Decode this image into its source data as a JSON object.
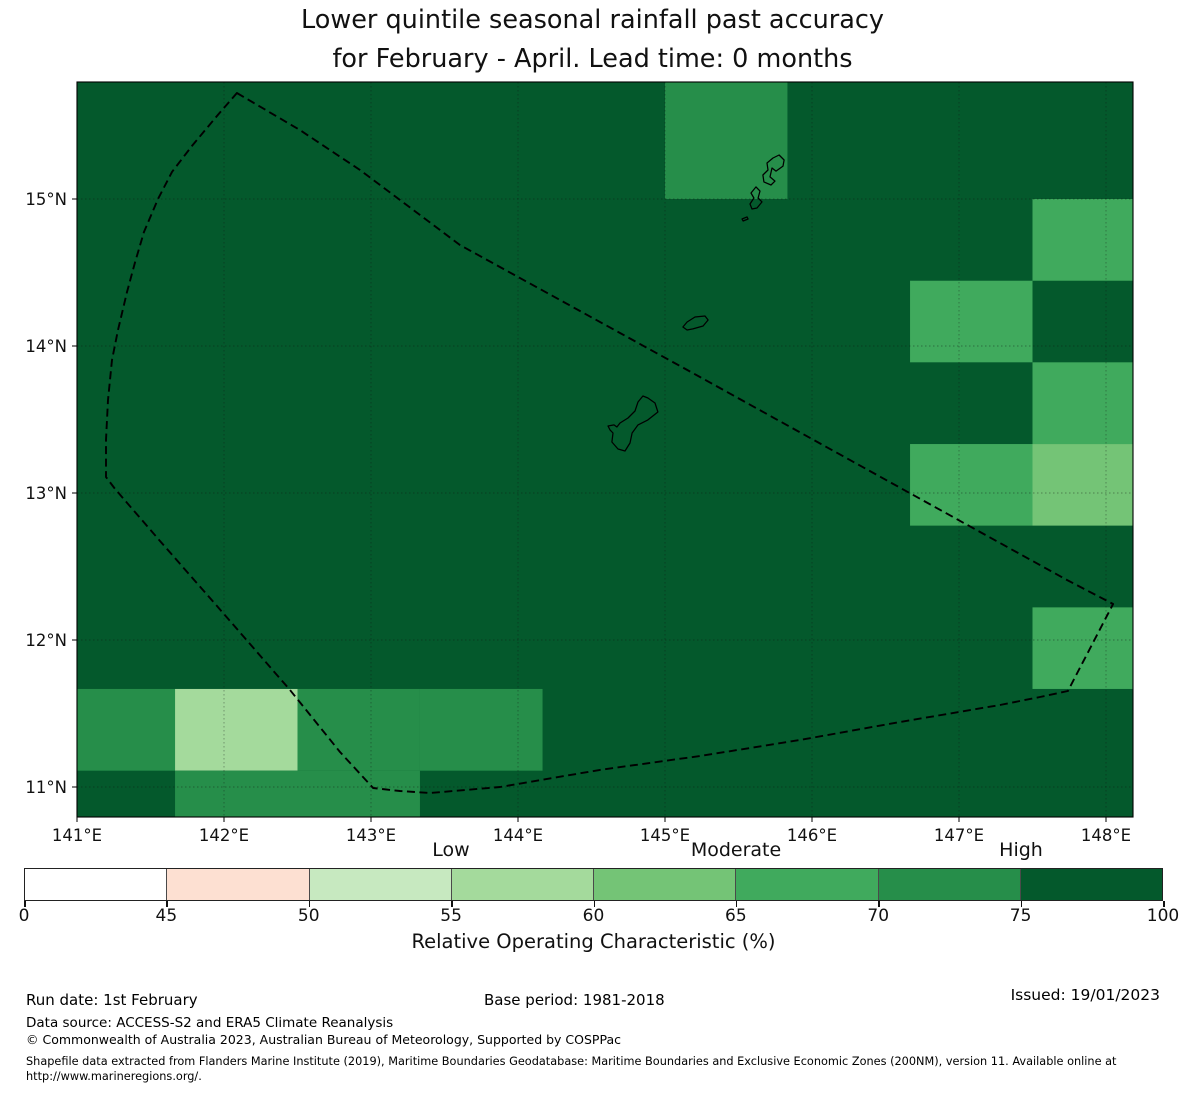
{
  "title": {
    "line1": "Lower quintile seasonal rainfall past accuracy",
    "line2": "for February - April. Lead time: 0 months"
  },
  "chart_data": {
    "type": "heatmap",
    "title": "Lower quintile seasonal rainfall past accuracy for February - April. Lead time: 0 months",
    "map": {
      "x_ticks": [
        {
          "label": "141°E",
          "lon": 141
        },
        {
          "label": "142°E",
          "lon": 142
        },
        {
          "label": "143°E",
          "lon": 143
        },
        {
          "label": "144°E",
          "lon": 144
        },
        {
          "label": "145°E",
          "lon": 145
        },
        {
          "label": "146°E",
          "lon": 146
        },
        {
          "label": "147°E",
          "lon": 147
        },
        {
          "label": "148°E",
          "lon": 148
        }
      ],
      "y_ticks": [
        {
          "label": "15°N",
          "lat": 15
        },
        {
          "label": "14°N",
          "lat": 14
        },
        {
          "label": "13°N",
          "lat": 13
        },
        {
          "label": "12°N",
          "lat": 12
        },
        {
          "label": "11°N",
          "lat": 11
        }
      ],
      "lon_range": [
        141.0,
        148.184
      ],
      "lat_range": [
        10.796,
        15.796
      ],
      "grid_cell_deg": {
        "lon": 0.8333,
        "lat": 0.5556
      },
      "background_roc_range": "75-100",
      "cells": [
        {
          "lon0": 145.0,
          "lon1": 145.833,
          "lat0": 15.0,
          "lat1": 15.8,
          "roc_range": "70-75"
        },
        {
          "lon0": 147.5,
          "lon1": 148.34,
          "lat0": 14.444,
          "lat1": 15.0,
          "roc_range": "65-70"
        },
        {
          "lon0": 146.667,
          "lon1": 147.5,
          "lat0": 13.889,
          "lat1": 14.444,
          "roc_range": "65-70"
        },
        {
          "lon0": 147.5,
          "lon1": 148.34,
          "lat0": 13.333,
          "lat1": 13.889,
          "roc_range": "65-70"
        },
        {
          "lon0": 146.667,
          "lon1": 147.5,
          "lat0": 12.778,
          "lat1": 13.333,
          "roc_range": "65-70"
        },
        {
          "lon0": 147.5,
          "lon1": 148.34,
          "lat0": 12.778,
          "lat1": 13.333,
          "roc_range": "60-65"
        },
        {
          "lon0": 147.5,
          "lon1": 148.34,
          "lat0": 11.667,
          "lat1": 12.222,
          "roc_range": "65-70"
        },
        {
          "lon0": 141.0,
          "lon1": 141.667,
          "lat0": 11.111,
          "lat1": 11.667,
          "roc_range": "70-75"
        },
        {
          "lon0": 141.667,
          "lon1": 142.5,
          "lat0": 11.111,
          "lat1": 11.667,
          "roc_range": "55-60"
        },
        {
          "lon0": 142.5,
          "lon1": 143.333,
          "lat0": 11.111,
          "lat1": 11.667,
          "roc_range": "70-75"
        },
        {
          "lon0": 143.333,
          "lon1": 144.167,
          "lat0": 11.111,
          "lat1": 11.667,
          "roc_range": "70-75"
        },
        {
          "lon0": 141.667,
          "lon1": 142.5,
          "lat0": 10.55,
          "lat1": 11.111,
          "roc_range": "70-75"
        },
        {
          "lon0": 142.5,
          "lon1": 143.333,
          "lat0": 10.55,
          "lat1": 11.111,
          "roc_range": "70-75"
        }
      ],
      "eez_boundary": [
        [
          142.088,
          15.721
        ],
        [
          142.517,
          15.469
        ],
        [
          142.925,
          15.197
        ],
        [
          143.333,
          14.891
        ],
        [
          143.605,
          14.687
        ],
        [
          144.286,
          14.313
        ],
        [
          145.238,
          13.789
        ],
        [
          146.259,
          13.224
        ],
        [
          147.279,
          12.66
        ],
        [
          147.735,
          12.408
        ],
        [
          148.048,
          12.245
        ],
        [
          147.741,
          11.653
        ],
        [
          147.551,
          11.612
        ],
        [
          147.279,
          11.558
        ],
        [
          146.599,
          11.442
        ],
        [
          145.918,
          11.32
        ],
        [
          145.238,
          11.211
        ],
        [
          144.558,
          11.116
        ],
        [
          143.878,
          11.0
        ],
        [
          143.401,
          10.959
        ],
        [
          143.197,
          10.973
        ],
        [
          143.014,
          10.993
        ],
        [
          142.789,
          11.238
        ],
        [
          142.449,
          11.66
        ],
        [
          141.993,
          12.184
        ],
        [
          141.565,
          12.673
        ],
        [
          141.259,
          13.027
        ],
        [
          141.197,
          13.109
        ],
        [
          141.197,
          13.361
        ],
        [
          141.211,
          13.633
        ],
        [
          141.238,
          13.905
        ],
        [
          141.279,
          14.109
        ],
        [
          141.34,
          14.367
        ],
        [
          141.395,
          14.571
        ],
        [
          141.456,
          14.776
        ],
        [
          141.551,
          15.0
        ],
        [
          141.646,
          15.184
        ],
        [
          141.782,
          15.361
        ],
        [
          141.946,
          15.558
        ]
      ],
      "islands": [
        {
          "name": "guam",
          "outline": [
            [
              144.816,
              13.619
            ],
            [
              144.85,
              13.66
            ],
            [
              144.884,
              13.646
            ],
            [
              144.932,
              13.612
            ],
            [
              144.952,
              13.551
            ],
            [
              144.884,
              13.497
            ],
            [
              144.816,
              13.463
            ],
            [
              144.776,
              13.408
            ],
            [
              144.762,
              13.34
            ],
            [
              144.728,
              13.286
            ],
            [
              144.68,
              13.299
            ],
            [
              144.639,
              13.347
            ],
            [
              144.646,
              13.408
            ],
            [
              144.626,
              13.429
            ],
            [
              144.612,
              13.456
            ],
            [
              144.653,
              13.463
            ],
            [
              144.673,
              13.449
            ],
            [
              144.694,
              13.476
            ],
            [
              144.748,
              13.51
            ],
            [
              144.796,
              13.558
            ]
          ]
        },
        {
          "name": "rota",
          "outline": [
            [
              145.122,
              14.129
            ],
            [
              145.15,
              14.163
            ],
            [
              145.204,
              14.197
            ],
            [
              145.272,
              14.204
            ],
            [
              145.293,
              14.177
            ],
            [
              145.259,
              14.136
            ],
            [
              145.19,
              14.116
            ],
            [
              145.15,
              14.109
            ]
          ]
        },
        {
          "name": "aguijan",
          "outline": [
            [
              145.524,
              14.864
            ],
            [
              145.558,
              14.878
            ],
            [
              145.565,
              14.864
            ],
            [
              145.531,
              14.85
            ]
          ]
        },
        {
          "name": "tinian",
          "outline": [
            [
              145.619,
              15.082
            ],
            [
              145.646,
              15.054
            ],
            [
              145.633,
              15.007
            ],
            [
              145.66,
              14.98
            ],
            [
              145.626,
              14.939
            ],
            [
              145.592,
              14.932
            ],
            [
              145.578,
              14.966
            ],
            [
              145.605,
              15.007
            ],
            [
              145.585,
              15.041
            ]
          ]
        },
        {
          "name": "saipan",
          "outline": [
            [
              145.776,
              15.299
            ],
            [
              145.81,
              15.265
            ],
            [
              145.803,
              15.224
            ],
            [
              145.755,
              15.19
            ],
            [
              145.728,
              15.211
            ],
            [
              145.714,
              15.15
            ],
            [
              145.748,
              15.122
            ],
            [
              145.721,
              15.095
            ],
            [
              145.673,
              15.116
            ],
            [
              145.666,
              15.163
            ],
            [
              145.701,
              15.197
            ],
            [
              145.694,
              15.245
            ],
            [
              145.735,
              15.279
            ]
          ]
        }
      ]
    },
    "colorbar": {
      "tick_values": [
        "0",
        "45",
        "50",
        "55",
        "60",
        "65",
        "70",
        "75",
        "100"
      ],
      "segments": [
        {
          "roc_range": "0-45",
          "color": "#ffffff"
        },
        {
          "roc_range": "45-50",
          "color": "#fde0d2"
        },
        {
          "roc_range": "50-55",
          "color": "#c7e9c0"
        },
        {
          "roc_range": "55-60",
          "color": "#a4da9c"
        },
        {
          "roc_range": "60-65",
          "color": "#74c476"
        },
        {
          "roc_range": "65-70",
          "color": "#40aa5d"
        },
        {
          "roc_range": "70-75",
          "color": "#268e4a"
        },
        {
          "roc_range": "75-100",
          "color": "#04592c"
        }
      ],
      "category_labels": [
        {
          "label": "Low",
          "tick": "55"
        },
        {
          "label": "Moderate",
          "tick": "65"
        },
        {
          "label": "High",
          "tick": "75"
        }
      ],
      "xlabel": "Relative Operating Characteristic (%)"
    }
  },
  "footer": {
    "run_date": "Run date: 1st February",
    "base_period": "Base period: 1981-2018",
    "issued": "Issued: 19/01/2023",
    "data_source": "Data source: ACCESS-S2 and ERA5 Climate Reanalysis",
    "copyright": "© Commonwealth of Australia 2023, Australian Bureau of Meteorology, Supported by COSPPac",
    "shapefile_note": "Shapefile data extracted from Flanders Marine Institute (2019), Maritime Boundaries Geodatabase: Maritime Boundaries and Exclusive Economic Zones (200NM), version 11. Available online at http://www.marineregions.org/."
  }
}
